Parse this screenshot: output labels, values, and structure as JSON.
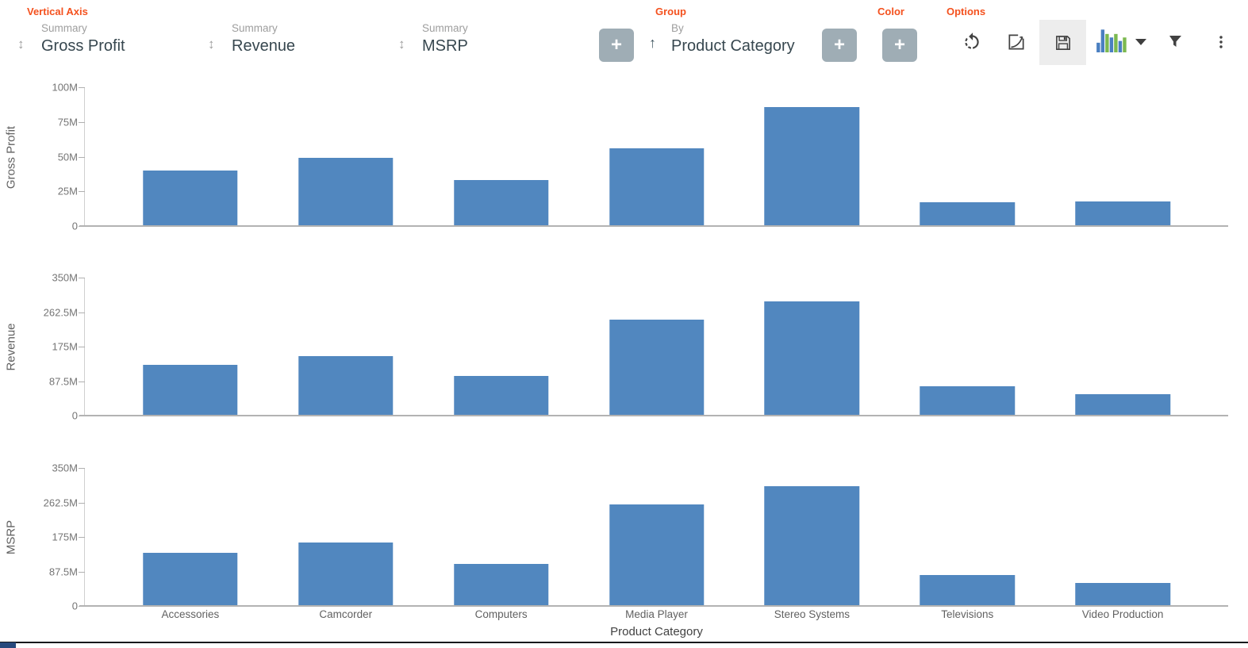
{
  "toolbar": {
    "vertical_axis_label": "Vertical Axis",
    "summaries": [
      {
        "label": "Summary",
        "value": "Gross Profit"
      },
      {
        "label": "Summary",
        "value": "Revenue"
      },
      {
        "label": "Summary",
        "value": "MSRP"
      }
    ],
    "add_button_label": "+",
    "group": {
      "section_label": "Group",
      "by_label": "By",
      "value": "Product Category"
    },
    "color_section_label": "Color",
    "options_section_label": "Options",
    "icons": [
      "sort-updown-icon",
      "group-sort-arrow-icon",
      "undo-icon",
      "trend-curve-icon",
      "save-icon",
      "chart-type-icon",
      "dropdown-caret-icon",
      "filter-icon",
      "more-vertical-icon"
    ]
  },
  "colors": {
    "bar": "#5187bf",
    "accent_orange": "#f4511e",
    "icon_gray": "#424242",
    "plus_button_gray": "#9fadb5",
    "chart_icon_blue": "#4a7fc1",
    "chart_icon_green": "#7cb950"
  },
  "x_axis": {
    "title": "Product Category",
    "categories": [
      "Accessories",
      "Camcorder",
      "Computers",
      "Media Player",
      "Stereo Systems",
      "Televisions",
      "Video Production"
    ]
  },
  "chart_data": [
    {
      "type": "bar",
      "title": "Gross Profit",
      "ylabel": "Gross Profit",
      "xlabel": "Product Category",
      "categories": [
        "Accessories",
        "Camcorder",
        "Computers",
        "Media Player",
        "Stereo Systems",
        "Televisions",
        "Video Production"
      ],
      "values": [
        40,
        49,
        33,
        56,
        86,
        17,
        18
      ],
      "unit": "M",
      "ylim": [
        0,
        100
      ],
      "grid": false,
      "legend": false,
      "yticks": [
        {
          "label": "100M",
          "value": 100
        },
        {
          "label": "75M",
          "value": 75
        },
        {
          "label": "50M",
          "value": 50
        },
        {
          "label": "25M",
          "value": 25
        },
        {
          "label": "0",
          "value": 0
        }
      ]
    },
    {
      "type": "bar",
      "title": "Revenue",
      "ylabel": "Revenue",
      "xlabel": "Product Category",
      "categories": [
        "Accessories",
        "Camcorder",
        "Computers",
        "Media Player",
        "Stereo Systems",
        "Televisions",
        "Video Production"
      ],
      "values": [
        128,
        151,
        100,
        243,
        290,
        75,
        55
      ],
      "unit": "M",
      "ylim": [
        0,
        350
      ],
      "grid": false,
      "legend": false,
      "yticks": [
        {
          "label": "350M",
          "value": 350
        },
        {
          "label": "262.5M",
          "value": 262.5
        },
        {
          "label": "175M",
          "value": 175
        },
        {
          "label": "87.5M",
          "value": 87.5
        },
        {
          "label": "0",
          "value": 0
        }
      ]
    },
    {
      "type": "bar",
      "title": "MSRP",
      "ylabel": "MSRP",
      "xlabel": "Product Category",
      "categories": [
        "Accessories",
        "Camcorder",
        "Computers",
        "Media Player",
        "Stereo Systems",
        "Televisions",
        "Video Production"
      ],
      "values": [
        134,
        160,
        106,
        257,
        303,
        79,
        58
      ],
      "unit": "M",
      "ylim": [
        0,
        350
      ],
      "grid": false,
      "legend": false,
      "yticks": [
        {
          "label": "350M",
          "value": 350
        },
        {
          "label": "262.5M",
          "value": 262.5
        },
        {
          "label": "175M",
          "value": 175
        },
        {
          "label": "87.5M",
          "value": 87.5
        },
        {
          "label": "0",
          "value": 0
        }
      ]
    }
  ]
}
